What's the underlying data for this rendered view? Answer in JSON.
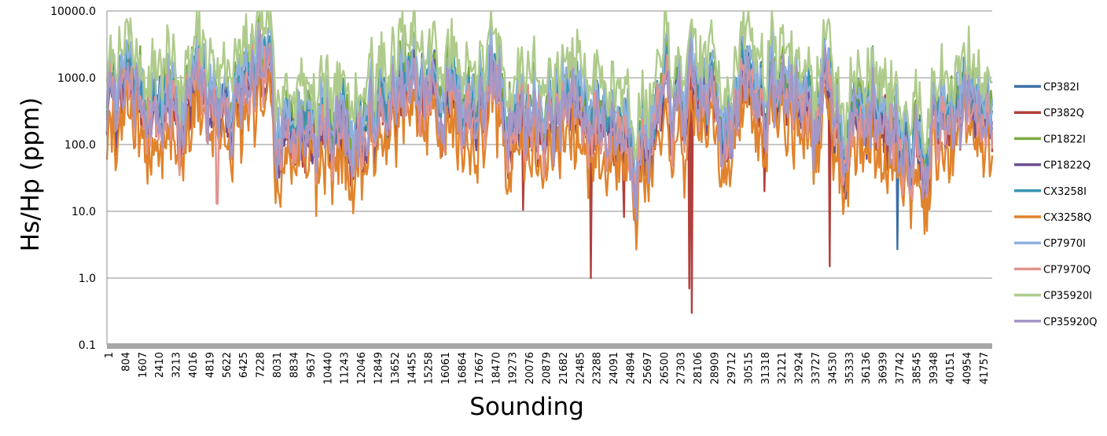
{
  "chart_data": {
    "type": "line",
    "title": "",
    "xlabel": "Sounding",
    "ylabel": "Hs/Hp (ppm)",
    "yscale": "log",
    "ylim": [
      0.1,
      10000
    ],
    "xlim": [
      1,
      42560
    ],
    "y_ticks": [
      {
        "value": 0.1,
        "label": "0.1"
      },
      {
        "value": 1,
        "label": "1.0"
      },
      {
        "value": 10,
        "label": "10.0"
      },
      {
        "value": 100,
        "label": "100.0"
      },
      {
        "value": 1000,
        "label": "1000.0"
      },
      {
        "value": 10000,
        "label": "10000.0"
      }
    ],
    "x_ticks": [
      "1",
      "804",
      "1607",
      "2410",
      "3213",
      "4016",
      "4819",
      "5622",
      "6425",
      "7228",
      "8031",
      "8834",
      "9637",
      "10440",
      "11243",
      "12046",
      "12849",
      "13652",
      "14455",
      "15258",
      "16061",
      "16864",
      "17667",
      "18470",
      "19273",
      "20076",
      "20879",
      "21682",
      "22485",
      "23288",
      "24091",
      "24894",
      "25697",
      "26500",
      "27303",
      "28106",
      "28909",
      "29712",
      "30515",
      "31318",
      "32121",
      "32924",
      "33727",
      "34530",
      "35333",
      "36136",
      "36939",
      "37742",
      "38545",
      "39348",
      "40151",
      "40954",
      "41757"
    ],
    "grid": true,
    "legend_position": "right",
    "series": [
      {
        "name": "CP382I",
        "color": "#3b6ea5",
        "base": 420,
        "amp": 0.62,
        "seed": 11,
        "spikes": [
          [
            38000,
            2.7
          ]
        ]
      },
      {
        "name": "CP382Q",
        "color": "#b1403c",
        "base": 260,
        "amp": 0.7,
        "seed": 23,
        "spikes": [
          [
            20000,
            10.5
          ],
          [
            23250,
            1.0
          ],
          [
            24850,
            8.2
          ],
          [
            28000,
            0.7
          ],
          [
            28100,
            0.3
          ],
          [
            34760,
            1.5
          ],
          [
            31600,
            20
          ]
        ]
      },
      {
        "name": "CP1822I",
        "color": "#7caa3f",
        "base": 600,
        "amp": 0.55,
        "seed": 37,
        "spikes": []
      },
      {
        "name": "CP1822Q",
        "color": "#6a4f8e",
        "base": 260,
        "amp": 0.62,
        "seed": 41,
        "spikes": []
      },
      {
        "name": "CX3258I",
        "color": "#3996b3",
        "base": 480,
        "amp": 0.55,
        "seed": 53,
        "spikes": []
      },
      {
        "name": "CX3258Q",
        "color": "#e0832c",
        "base": 110,
        "amp": 0.72,
        "seed": 67,
        "spikes": []
      },
      {
        "name": "CP7970I",
        "color": "#8fb0dc",
        "base": 650,
        "amp": 0.55,
        "seed": 71,
        "spikes": []
      },
      {
        "name": "CP7970Q",
        "color": "#e2938e",
        "base": 280,
        "amp": 0.66,
        "seed": 83,
        "spikes": [
          [
            5300,
            13
          ]
        ]
      },
      {
        "name": "CP35920I",
        "color": "#aecb8b",
        "base": 1400,
        "amp": 0.5,
        "seed": 97,
        "spikes": []
      },
      {
        "name": "CP35920Q",
        "color": "#a496c6",
        "base": 300,
        "amp": 0.6,
        "seed": 101,
        "spikes": []
      }
    ]
  }
}
